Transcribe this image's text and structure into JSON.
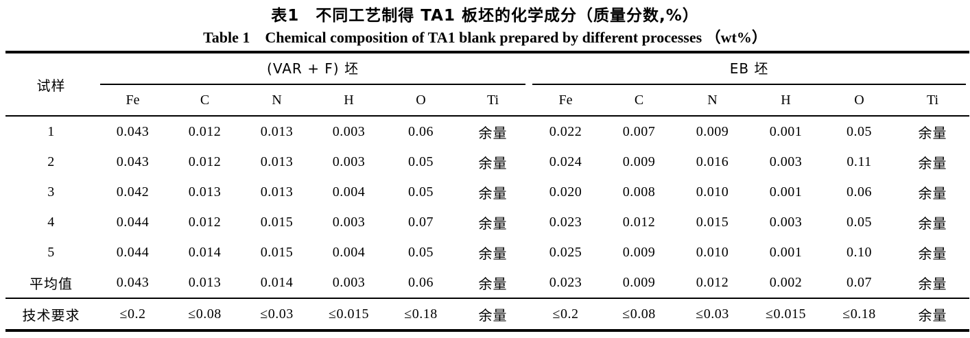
{
  "title": {
    "zh": "表1　不同工艺制得 TA1 板坯的化学成分（质量分数,%）",
    "en": "Table 1　Chemical composition of TA1 blank prepared by different processes （wt%）"
  },
  "table": {
    "row_header_label": "试样",
    "groups": [
      {
        "label": "(VAR + F) 坯",
        "columns": [
          "Fe",
          "C",
          "N",
          "H",
          "O",
          "Ti"
        ]
      },
      {
        "label": "EB 坯",
        "columns": [
          "Fe",
          "C",
          "N",
          "H",
          "O",
          "Ti"
        ]
      }
    ],
    "rows": [
      {
        "label": "1",
        "var_f": [
          "0.043",
          "0.012",
          "0.013",
          "0.003",
          "0.06",
          "余量"
        ],
        "eb": [
          "0.022",
          "0.007",
          "0.009",
          "0.001",
          "0.05",
          "余量"
        ]
      },
      {
        "label": "2",
        "var_f": [
          "0.043",
          "0.012",
          "0.013",
          "0.003",
          "0.05",
          "余量"
        ],
        "eb": [
          "0.024",
          "0.009",
          "0.016",
          "0.003",
          "0.11",
          "余量"
        ]
      },
      {
        "label": "3",
        "var_f": [
          "0.042",
          "0.013",
          "0.013",
          "0.004",
          "0.05",
          "余量"
        ],
        "eb": [
          "0.020",
          "0.008",
          "0.010",
          "0.001",
          "0.06",
          "余量"
        ]
      },
      {
        "label": "4",
        "var_f": [
          "0.044",
          "0.012",
          "0.015",
          "0.003",
          "0.07",
          "余量"
        ],
        "eb": [
          "0.023",
          "0.012",
          "0.015",
          "0.003",
          "0.05",
          "余量"
        ]
      },
      {
        "label": "5",
        "var_f": [
          "0.044",
          "0.014",
          "0.015",
          "0.004",
          "0.05",
          "余量"
        ],
        "eb": [
          "0.025",
          "0.009",
          "0.010",
          "0.001",
          "0.10",
          "余量"
        ]
      },
      {
        "label": "平均值",
        "var_f": [
          "0.043",
          "0.013",
          "0.014",
          "0.003",
          "0.06",
          "余量"
        ],
        "eb": [
          "0.023",
          "0.009",
          "0.012",
          "0.002",
          "0.07",
          "余量"
        ]
      },
      {
        "label": "技术要求",
        "var_f": [
          "≤0.2",
          "≤0.08",
          "≤0.03",
          "≤0.015",
          "≤0.18",
          "余量"
        ],
        "eb": [
          "≤0.2",
          "≤0.08",
          "≤0.03",
          "≤0.015",
          "≤0.18",
          "余量"
        ]
      }
    ]
  },
  "colors": {
    "text": "#000000",
    "background": "#ffffff",
    "rule": "#000000"
  }
}
